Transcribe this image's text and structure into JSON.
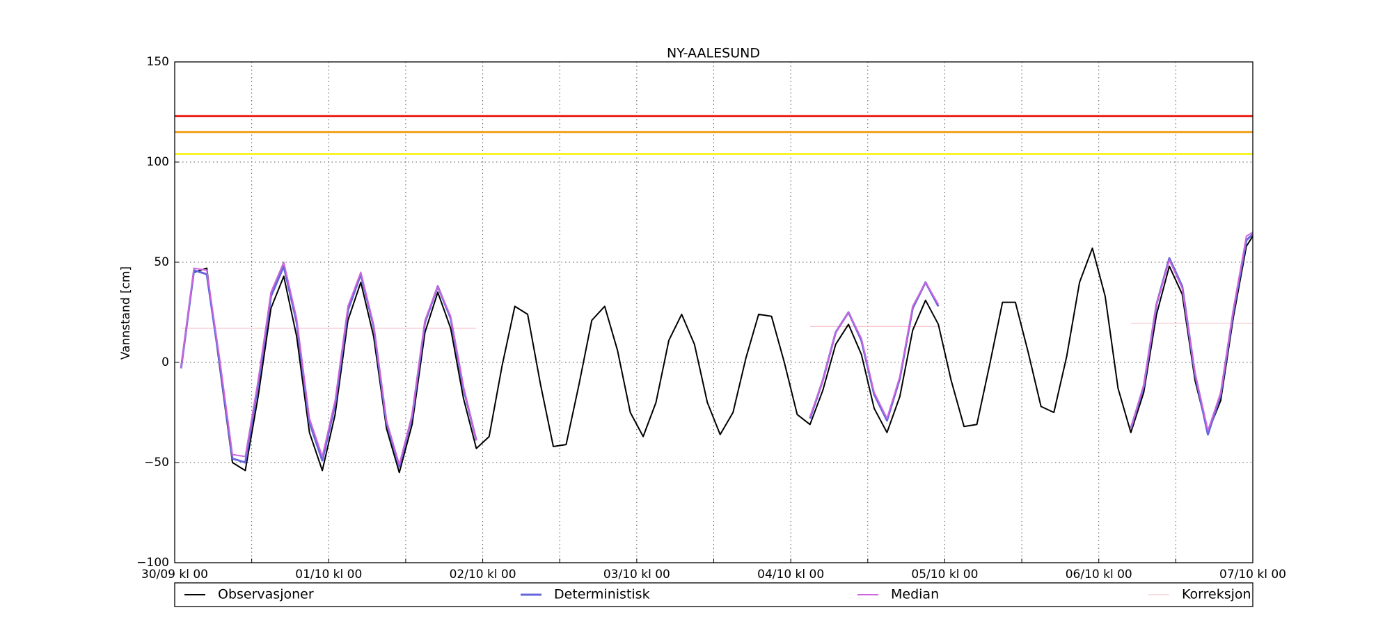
{
  "chart_data": {
    "type": "line",
    "title": "NY-AALESUND",
    "y_label": "Vannstand [cm]",
    "x": [
      1,
      3,
      5,
      7,
      9,
      11,
      13,
      15,
      17,
      19,
      21,
      23,
      25,
      27,
      29,
      31,
      33,
      35,
      37,
      39,
      41,
      43,
      45,
      47,
      49,
      51,
      53,
      55,
      57,
      59,
      61,
      63,
      65,
      67,
      69,
      71,
      73,
      75,
      77,
      79,
      81,
      83,
      85,
      87,
      89,
      91,
      93,
      95,
      97,
      99,
      101,
      103,
      105,
      107,
      109,
      111,
      113,
      115,
      117,
      119,
      121,
      123,
      125,
      127,
      129,
      131,
      133,
      135,
      137,
      139,
      141,
      143,
      145,
      147,
      149,
      151,
      153,
      155,
      157,
      159,
      161,
      163,
      165,
      167,
      168
    ],
    "xlim": [
      0,
      168
    ],
    "xticks": [
      {
        "value": 0,
        "label": "30/09 kl 00"
      },
      {
        "value": 24,
        "label": "01/10 kl 00"
      },
      {
        "value": 48,
        "label": "02/10 kl 00"
      },
      {
        "value": 72,
        "label": "03/10 kl 00"
      },
      {
        "value": 96,
        "label": "04/10 kl 00"
      },
      {
        "value": 120,
        "label": "05/10 kl 00"
      },
      {
        "value": 144,
        "label": "06/10 kl 00"
      },
      {
        "value": 168,
        "label": "07/10 kl 00"
      }
    ],
    "xminor_ticks": [
      12,
      36,
      60,
      84,
      108,
      132,
      156
    ],
    "ylim": [
      -100,
      150
    ],
    "yticks": [
      {
        "value": -100,
        "label": "−100"
      },
      {
        "value": -50,
        "label": "−50"
      },
      0,
      50,
      100,
      150
    ],
    "grid": true,
    "hlines": [
      {
        "value": 123,
        "color": "#e8201a"
      },
      {
        "value": 115,
        "color": "#f2a01e"
      },
      {
        "value": 104,
        "color": "#f5f52a"
      }
    ],
    "series": [
      {
        "name": "Observasjoner",
        "color": "#000000",
        "width": 2,
        "values": [
          -2,
          45,
          47,
          -2,
          -50,
          -54,
          -17,
          27,
          43,
          13,
          -35,
          -54,
          -26,
          21,
          40,
          13,
          -33,
          -55,
          -31,
          15,
          35,
          17,
          -18,
          -43,
          -37,
          -2,
          28,
          24,
          -11,
          -42,
          -41,
          -11,
          21,
          28,
          6,
          -25,
          -37,
          -20,
          11,
          24,
          9,
          -20,
          -36,
          -25,
          2,
          24,
          23,
          0,
          -26,
          -31,
          -14,
          9,
          19,
          4,
          -23,
          -35,
          -17,
          16,
          31,
          19,
          -9,
          -32,
          -31,
          -1,
          30,
          30,
          5,
          -22,
          -25,
          3,
          40,
          57,
          33,
          -13,
          -35,
          -15,
          24,
          48,
          34,
          -9,
          -35,
          -19,
          23,
          58,
          63
        ]
      },
      {
        "name": "Deterministisk",
        "color": "#6666dd",
        "width": 3,
        "values": [
          -3,
          46,
          44,
          0,
          -48,
          -50,
          -11,
          33,
          48,
          20,
          -30,
          -49,
          -21,
          26,
          44,
          18,
          -30,
          -52,
          -27,
          20,
          38,
          22,
          -13,
          -39,
          null,
          null,
          null,
          null,
          null,
          null,
          null,
          null,
          null,
          null,
          null,
          null,
          null,
          null,
          null,
          null,
          null,
          null,
          null,
          null,
          null,
          null,
          null,
          null,
          null,
          -28,
          -9,
          15,
          25,
          11,
          -16,
          -29,
          -8,
          27,
          40,
          28,
          null,
          null,
          null,
          null,
          null,
          null,
          null,
          null,
          null,
          null,
          null,
          null,
          null,
          null,
          -33,
          -12,
          29,
          52,
          38,
          -6,
          -36,
          -16,
          26,
          61,
          64
        ]
      },
      {
        "name": "Median",
        "color": "#cc66dd",
        "width": 2,
        "values": [
          -3,
          47,
          46,
          2,
          -46,
          -47,
          -9,
          35,
          50,
          22,
          -28,
          -47,
          -19,
          28,
          45,
          19,
          -29,
          -51,
          -26,
          21,
          38,
          23,
          -12,
          -39,
          null,
          null,
          null,
          null,
          null,
          null,
          null,
          null,
          null,
          null,
          null,
          null,
          null,
          null,
          null,
          null,
          null,
          null,
          null,
          null,
          null,
          null,
          null,
          null,
          null,
          -27,
          -9,
          15,
          25,
          12,
          -15,
          -28,
          -7,
          28,
          40,
          29,
          null,
          null,
          null,
          null,
          null,
          null,
          null,
          null,
          null,
          null,
          null,
          null,
          null,
          null,
          -33,
          -11,
          29,
          51,
          37,
          -5,
          -34,
          -15,
          27,
          63,
          65
        ]
      },
      {
        "name": "Korreksjon",
        "color": "#f5b8c4",
        "width": 1,
        "values": [
          17,
          17,
          17,
          17,
          17,
          17,
          17,
          17,
          17,
          17,
          17,
          17,
          17,
          17,
          17,
          17,
          17,
          17,
          17,
          17,
          17,
          17,
          17,
          17,
          null,
          null,
          null,
          null,
          null,
          null,
          null,
          null,
          null,
          null,
          null,
          null,
          null,
          null,
          null,
          null,
          null,
          null,
          null,
          null,
          null,
          null,
          null,
          null,
          null,
          18,
          18,
          18,
          18,
          18,
          18,
          18,
          18,
          18,
          18,
          18,
          null,
          null,
          null,
          null,
          null,
          null,
          null,
          null,
          null,
          null,
          null,
          null,
          null,
          null,
          19.5,
          19.5,
          19.5,
          19.5,
          19.5,
          19.5,
          19.5,
          19.5,
          19.5,
          19.5,
          19.5
        ]
      }
    ]
  }
}
